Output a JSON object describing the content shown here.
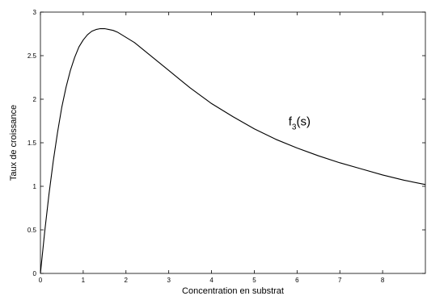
{
  "chart_data": {
    "type": "line",
    "title": "",
    "xlabel": "Concentration en substrat",
    "ylabel": "Taux de croissance",
    "xlim": [
      0,
      9
    ],
    "ylim": [
      0,
      3
    ],
    "x_ticks": [
      0,
      1,
      2,
      3,
      4,
      5,
      6,
      7,
      8
    ],
    "x_tick_labels": [
      "0",
      "1",
      "2",
      "3",
      "4",
      "5",
      "6",
      "7",
      "8"
    ],
    "y_ticks": [
      0,
      0.5,
      1,
      1.5,
      2,
      2.5,
      3
    ],
    "y_tick_labels": [
      "0",
      "0.5",
      "1",
      "1.5",
      "2",
      "2.5",
      "3"
    ],
    "grid": false,
    "series": [
      {
        "name": "f3(s)",
        "color": "#000000",
        "x": [
          0,
          0.1,
          0.2,
          0.3,
          0.4,
          0.5,
          0.6,
          0.7,
          0.8,
          0.9,
          1.0,
          1.1,
          1.2,
          1.3,
          1.4,
          1.5,
          1.6,
          1.7,
          1.8,
          1.9,
          2.0,
          2.2,
          2.4,
          2.6,
          2.8,
          3.0,
          3.25,
          3.5,
          3.75,
          4.0,
          4.5,
          5.0,
          5.5,
          6.0,
          6.5,
          7.0,
          7.5,
          8.0,
          8.5,
          9.0
        ],
        "y": [
          0.0,
          0.48,
          0.91,
          1.29,
          1.62,
          1.91,
          2.14,
          2.33,
          2.48,
          2.6,
          2.68,
          2.74,
          2.78,
          2.8,
          2.81,
          2.81,
          2.8,
          2.79,
          2.77,
          2.74,
          2.71,
          2.65,
          2.57,
          2.49,
          2.41,
          2.33,
          2.23,
          2.13,
          2.04,
          1.95,
          1.8,
          1.66,
          1.54,
          1.44,
          1.35,
          1.27,
          1.2,
          1.13,
          1.07,
          1.02
        ]
      }
    ],
    "annotations": [
      {
        "base": "f",
        "sub": "3",
        "rest": "(s)",
        "x": 5.8,
        "y": 1.7
      }
    ]
  }
}
